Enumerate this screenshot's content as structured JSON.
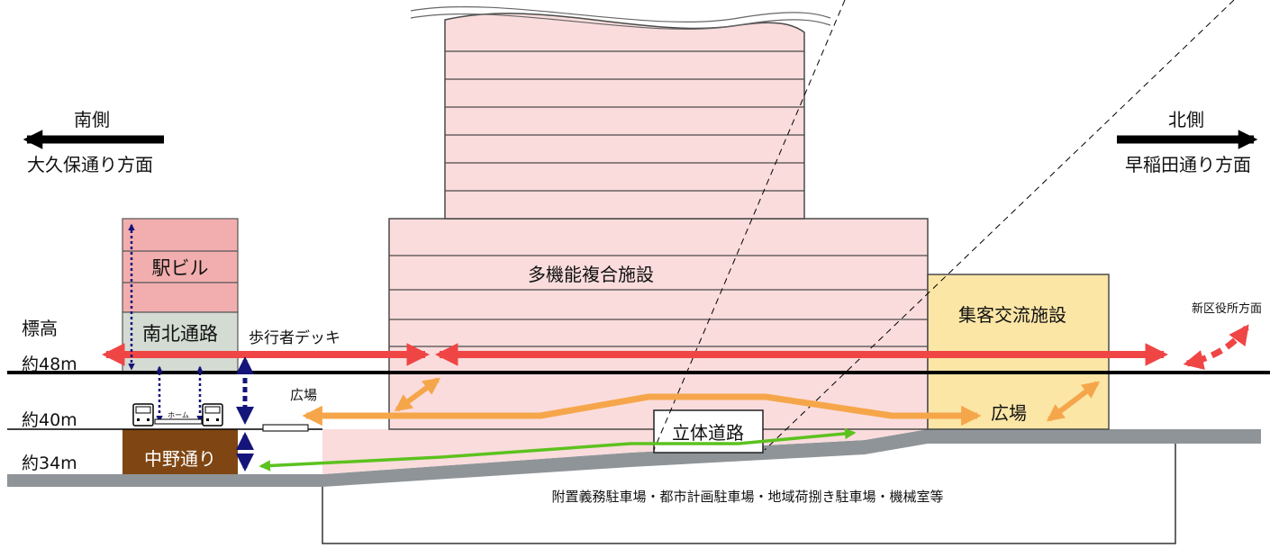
{
  "directions": {
    "south": {
      "side": "南側",
      "toward": "大久保通り方面"
    },
    "north": {
      "side": "北側",
      "toward": "早稲田通り方面"
    }
  },
  "levels": {
    "heading": "標高",
    "l48": "約48m",
    "l40": "約40m",
    "l34": "約34m"
  },
  "buildings": {
    "station_building": "駅ビル",
    "north_south_passage": "南北通路",
    "platform": "ホーム",
    "nakano_dori": "中野通り",
    "multipurpose_facility": "多機能複合施設",
    "visitor_exchange_facility": "集客交流施設",
    "elevated_road": "立体道路"
  },
  "labels": {
    "pedestrian_deck": "歩行者デッキ",
    "plaza_left": "広場",
    "plaza_right": "広場",
    "new_ward_office": "新区役所方面",
    "parking": "附置義務駐車場・都市計画駐車場・地域荷捌き駐車場・機械室等"
  },
  "colors": {
    "red_arrow": "#f04545",
    "orange_arrow": "#f6a64a",
    "green_arrow": "#5cc21e",
    "navy_arrow": "#14147a",
    "building_pink": "#fadcdc",
    "station_pink": "#f2aeae",
    "passage_gray": "#d3dbd3",
    "nakano_brown": "#7f4613",
    "visitor_yellow": "#fbe6a6",
    "ground_gray": "#8f9498"
  }
}
